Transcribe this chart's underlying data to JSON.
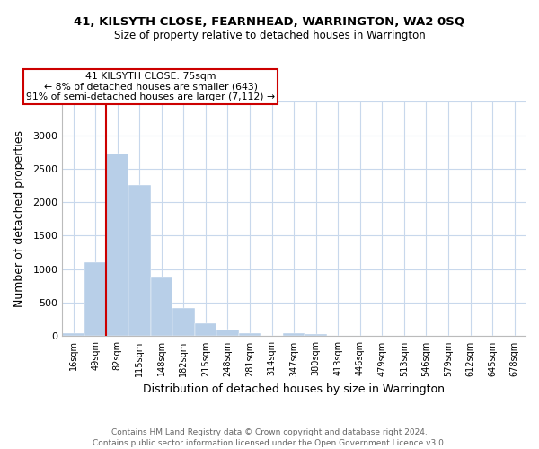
{
  "title1": "41, KILSYTH CLOSE, FEARNHEAD, WARRINGTON, WA2 0SQ",
  "title2": "Size of property relative to detached houses in Warrington",
  "xlabel": "Distribution of detached houses by size in Warrington",
  "ylabel": "Number of detached properties",
  "bin_labels": [
    "16sqm",
    "49sqm",
    "82sqm",
    "115sqm",
    "148sqm",
    "182sqm",
    "215sqm",
    "248sqm",
    "281sqm",
    "314sqm",
    "347sqm",
    "380sqm",
    "413sqm",
    "446sqm",
    "479sqm",
    "513sqm",
    "546sqm",
    "579sqm",
    "612sqm",
    "645sqm",
    "678sqm"
  ],
  "bar_heights": [
    40,
    1100,
    2720,
    2260,
    870,
    415,
    190,
    100,
    40,
    5,
    40,
    30,
    5,
    0,
    0,
    0,
    0,
    0,
    0,
    0,
    0
  ],
  "bar_color": "#b8cfe8",
  "property_line_label": "41 KILSYTH CLOSE: 75sqm",
  "annotation_line1": "← 8% of detached houses are smaller (643)",
  "annotation_line2": "91% of semi-detached houses are larger (7,112) →",
  "vline_color": "#cc0000",
  "vline_x": 1.5,
  "ylim": [
    0,
    3500
  ],
  "yticks": [
    0,
    500,
    1000,
    1500,
    2000,
    2500,
    3000,
    3500
  ],
  "footer1": "Contains HM Land Registry data © Crown copyright and database right 2024.",
  "footer2": "Contains public sector information licensed under the Open Government Licence v3.0.",
  "bg_color": "#ffffff",
  "grid_color": "#c8d8ec"
}
